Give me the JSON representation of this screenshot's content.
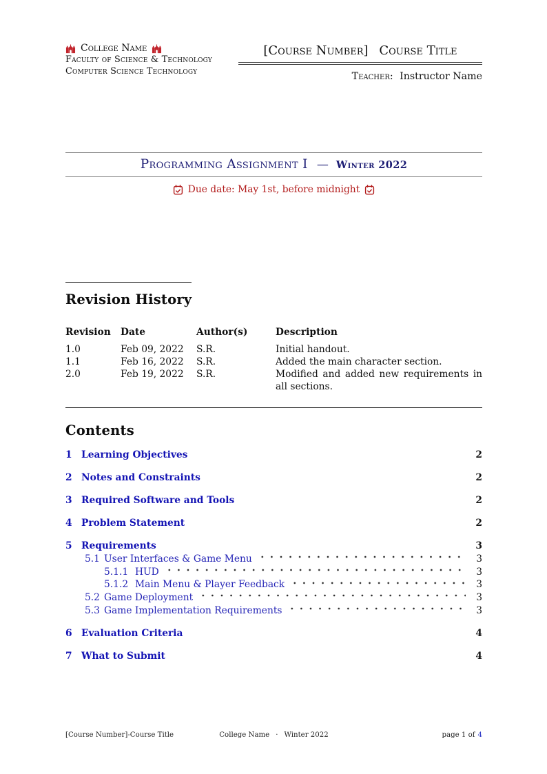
{
  "header": {
    "college_name": "College Name",
    "faculty_line": "Faculty of Science & Technology",
    "department_line": "Computer Science Technology",
    "course_number": "[Course Number]",
    "course_title": "Course Title",
    "teacher_label": "Teacher:",
    "teacher_name": "Instructor Name",
    "logo_icon": "college-crest-icon",
    "logo_color": "#c2252d"
  },
  "title_block": {
    "title": "Programming Assignment I",
    "separator": "—",
    "term": "Winter 2022",
    "due_date": "Due date: May 1st, before midnight",
    "due_date_icon": "calendar-check-icon",
    "title_color": "#1b1b73",
    "due_date_color": "#b21a1a"
  },
  "revision_history": {
    "heading": "Revision History",
    "columns": [
      "Revision",
      "Date",
      "Author(s)",
      "Description"
    ],
    "rows": [
      [
        "1.0",
        "Feb 09, 2022",
        "S.R.",
        "Initial handout."
      ],
      [
        "1.1",
        "Feb 16, 2022",
        "S.R.",
        "Added the main character section."
      ],
      [
        "2.0",
        "Feb 19, 2022",
        "S.R.",
        "Modified and added new requirements in all sections."
      ]
    ]
  },
  "contents": {
    "heading": "Contents",
    "link_color": "#1414b4",
    "entries": [
      {
        "number": "1",
        "label": "Learning Objectives",
        "page": "2",
        "level": 1
      },
      {
        "number": "2",
        "label": "Notes and Constraints",
        "page": "2",
        "level": 1
      },
      {
        "number": "3",
        "label": "Required Software and Tools",
        "page": "2",
        "level": 1
      },
      {
        "number": "4",
        "label": "Problem Statement",
        "page": "2",
        "level": 1
      },
      {
        "number": "5",
        "label": "Requirements",
        "page": "3",
        "level": 1
      },
      {
        "number": "5.1",
        "label": "User Interfaces & Game Menu",
        "page": "3",
        "level": 2
      },
      {
        "number": "5.1.1",
        "label": "HUD",
        "page": "3",
        "level": 3
      },
      {
        "number": "5.1.2",
        "label": "Main Menu & Player Feedback",
        "page": "3",
        "level": 3
      },
      {
        "number": "5.2",
        "label": "Game Deployment",
        "page": "3",
        "level": 2
      },
      {
        "number": "5.3",
        "label": "Game Implementation Requirements",
        "page": "3",
        "level": 3,
        "indent_level": 2
      },
      {
        "number": "6",
        "label": "Evaluation Criteria",
        "page": "4",
        "level": 1
      },
      {
        "number": "7",
        "label": "What to Submit",
        "page": "4",
        "level": 1
      }
    ]
  },
  "footer": {
    "left": "[Course Number]-Course Title",
    "center_college": "College Name",
    "center_separator": "·",
    "center_term": "Winter 2022",
    "page_prefix": "page 1 of",
    "page_total": "4",
    "page_total_color": "#2733c4"
  }
}
